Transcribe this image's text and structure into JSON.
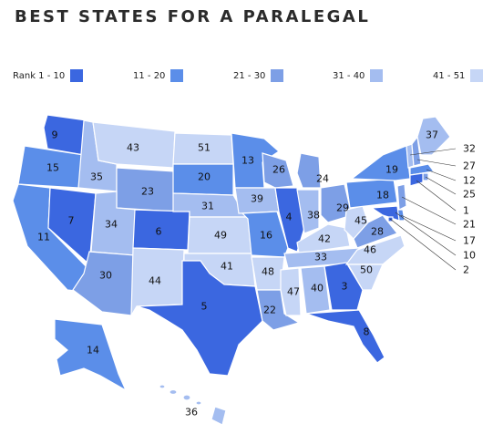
{
  "title": "BEST STATES FOR A PARALEGAL",
  "legend": [
    {
      "label": "Rank 1 - 10",
      "color": "#3b67e0"
    },
    {
      "label": "11 - 20",
      "color": "#5b8ee9"
    },
    {
      "label": "21 - 30",
      "color": "#7d9fe6"
    },
    {
      "label": "31 - 40",
      "color": "#a4bdf0"
    },
    {
      "label": "41 - 51",
      "color": "#c6d6f6"
    }
  ],
  "states": {
    "WA": "9",
    "OR": "15",
    "CA": "11",
    "NV": "7",
    "ID": "35",
    "MT": "43",
    "WY": "23",
    "UT": "34",
    "AZ": "30",
    "CO": "6",
    "NM": "44",
    "ND": "51",
    "SD": "20",
    "NE": "31",
    "KS": "49",
    "OK": "41",
    "TX": "5",
    "MN": "13",
    "IA": "39",
    "MO": "16",
    "AR": "48",
    "LA": "22",
    "WI": "26",
    "IL": "4",
    "MS": "47",
    "MI": "24",
    "IN": "38",
    "KY": "42",
    "TN": "33",
    "AL": "40",
    "GA": "3",
    "FL": "8",
    "OH": "29",
    "WV": "45",
    "VA": "28",
    "NC": "46",
    "SC": "50",
    "PA": "18",
    "NY": "19",
    "ME": "37",
    "AK": "14",
    "HI": "36",
    "VT": "32",
    "NH": "27",
    "MA": "12",
    "RI": "25",
    "CT": "1",
    "NJ": "21",
    "DE": "17",
    "MD": "10",
    "DC": "2"
  }
}
